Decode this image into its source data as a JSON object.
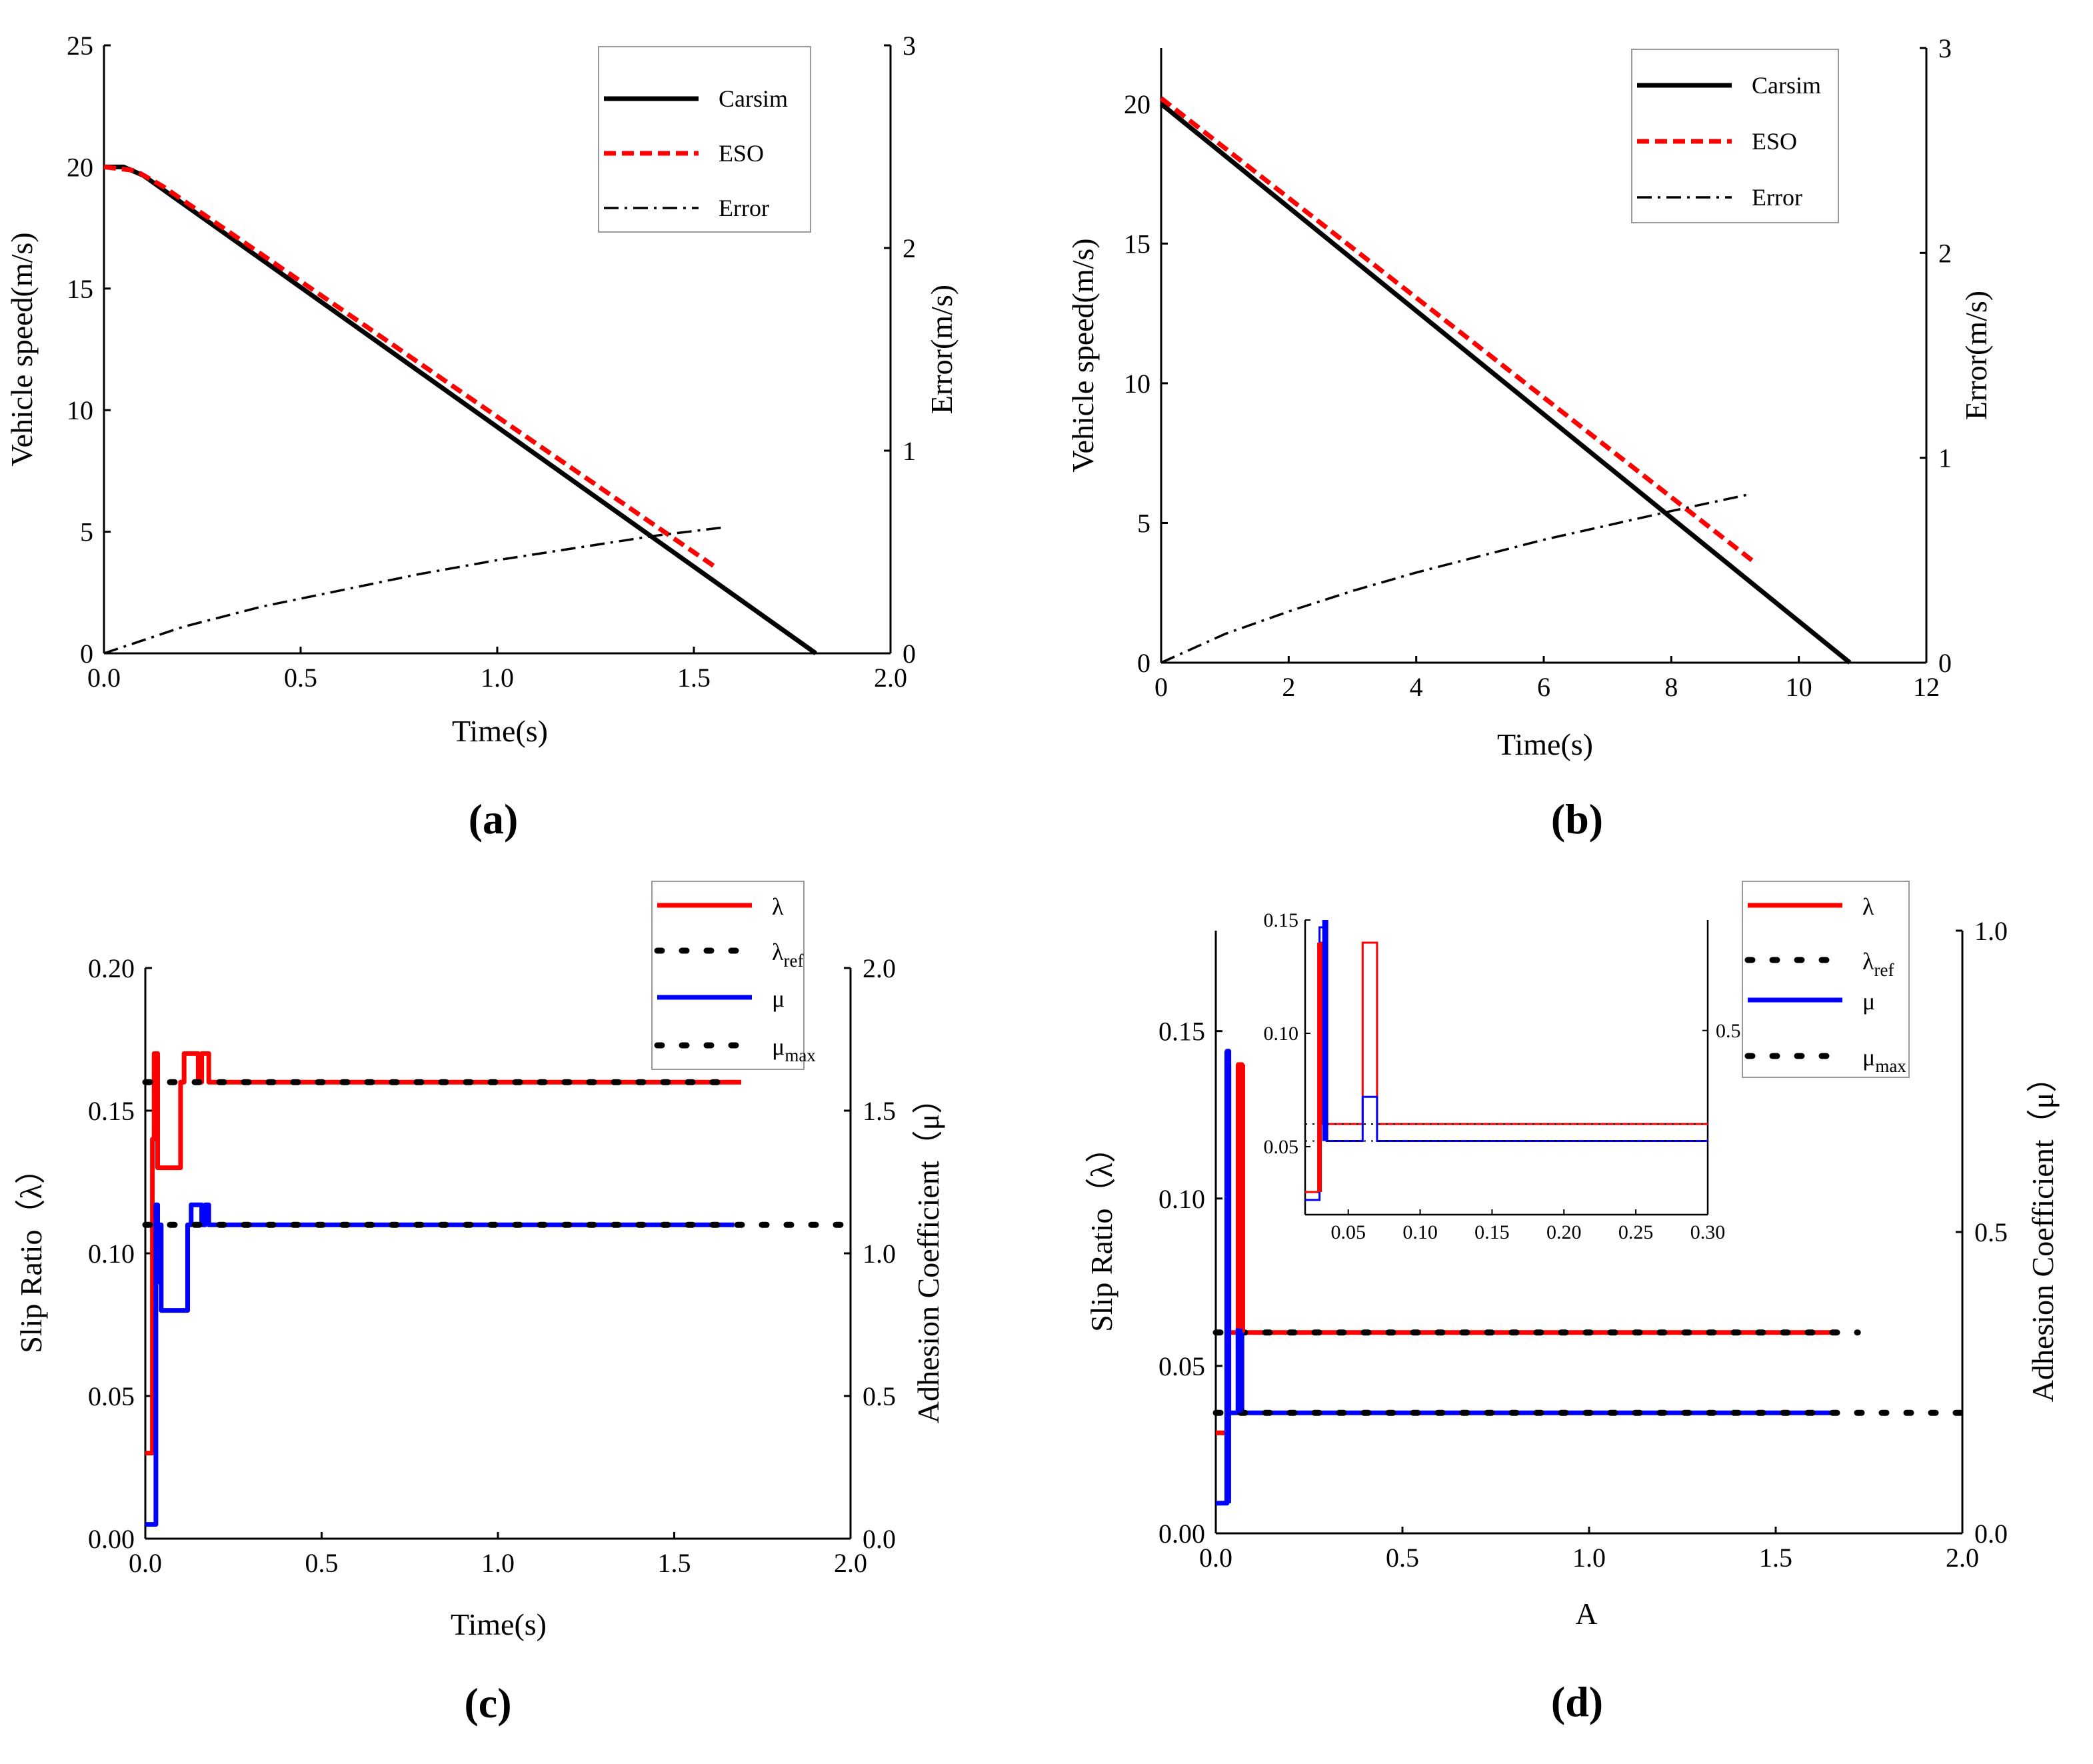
{
  "chart_data": [
    {
      "panel": "a",
      "type": "line",
      "caption": "(a)",
      "xlabel": "Time(s)",
      "ylabel": "Vehicle speed(m/s)",
      "y2label": "Error(m/s)",
      "xlim": [
        0,
        2.0
      ],
      "ylim": [
        0,
        25
      ],
      "y2lim": [
        0,
        3
      ],
      "xticks": [
        "0.0",
        "0.5",
        "1.0",
        "1.5",
        "2.0"
      ],
      "yticks": [
        "0",
        "5",
        "10",
        "15",
        "20",
        "25"
      ],
      "y2ticks": [
        "0",
        "1",
        "2",
        "3"
      ],
      "legend": {
        "items": [
          "Carsim",
          "ESO",
          "Error"
        ],
        "location": "top-right"
      },
      "series": [
        {
          "name": "Carsim",
          "axis": "left",
          "color": "#000000",
          "style": "solid",
          "points": [
            [
              0,
              20
            ],
            [
              0.05,
              20
            ],
            [
              0.1,
              19.65
            ],
            [
              1.81,
              0
            ]
          ]
        },
        {
          "name": "ESO",
          "axis": "left",
          "color": "#ff0000",
          "style": "dashed",
          "points": [
            [
              0,
              20
            ],
            [
              0.08,
              19.85
            ],
            [
              0.15,
              19.2
            ],
            [
              1.55,
              3.6
            ]
          ]
        },
        {
          "name": "Error",
          "axis": "right",
          "color": "#000000",
          "style": "dashdot",
          "points": [
            [
              0,
              0
            ],
            [
              0.2,
              0.13
            ],
            [
              0.4,
              0.23
            ],
            [
              0.6,
              0.31
            ],
            [
              0.8,
              0.39
            ],
            [
              1.0,
              0.46
            ],
            [
              1.2,
              0.52
            ],
            [
              1.4,
              0.58
            ],
            [
              1.57,
              0.62
            ]
          ]
        }
      ]
    },
    {
      "panel": "b",
      "type": "line",
      "caption": "(b)",
      "xlabel": "Time(s)",
      "ylabel": "Vehicle speed(m/s)",
      "y2label": "Error(m/s)",
      "xlim": [
        0,
        12
      ],
      "ylim": [
        0,
        22
      ],
      "y2lim": [
        0,
        3
      ],
      "xticks": [
        "0",
        "2",
        "4",
        "6",
        "8",
        "10",
        "12"
      ],
      "yticks": [
        "0",
        "5",
        "10",
        "15",
        "20"
      ],
      "y2ticks": [
        "0",
        "1",
        "2",
        "3"
      ],
      "legend": {
        "items": [
          "Carsim",
          "ESO",
          "Error"
        ],
        "location": "top-right"
      },
      "series": [
        {
          "name": "Carsim",
          "axis": "left",
          "color": "#000000",
          "style": "solid",
          "points": [
            [
              0,
              20
            ],
            [
              10.8,
              0
            ]
          ]
        },
        {
          "name": "ESO",
          "axis": "left",
          "color": "#ff0000",
          "style": "dashed",
          "points": [
            [
              0,
              20.2
            ],
            [
              9.3,
              3.6
            ]
          ]
        },
        {
          "name": "Error",
          "axis": "right",
          "color": "#000000",
          "style": "dashdot",
          "points": [
            [
              0,
              0
            ],
            [
              1,
              0.14
            ],
            [
              2,
              0.25
            ],
            [
              3,
              0.35
            ],
            [
              4,
              0.44
            ],
            [
              5,
              0.52
            ],
            [
              6,
              0.6
            ],
            [
              7,
              0.67
            ],
            [
              8,
              0.74
            ],
            [
              9.2,
              0.82
            ]
          ]
        }
      ]
    },
    {
      "panel": "c",
      "type": "line",
      "caption": "(c)",
      "xlabel": "Time(s)",
      "ylabel": "Slip Ratio（λ）",
      "y2label": "Adhesion Coefficient（μ）",
      "xlim": [
        0,
        2.0
      ],
      "ylim": [
        0,
        0.2
      ],
      "y2lim": [
        0,
        2.0
      ],
      "xticks": [
        "0.0",
        "0.5",
        "1.0",
        "1.5",
        "2.0"
      ],
      "yticks": [
        "0.00",
        "0.05",
        "0.10",
        "0.15",
        "0.20"
      ],
      "y2ticks": [
        "0.0",
        "0.5",
        "1.0",
        "1.5",
        "2.0"
      ],
      "legend": {
        "items": [
          {
            "base": "λ",
            "sub": ""
          },
          {
            "base": "λ",
            "sub": "ref"
          },
          {
            "base": "μ",
            "sub": ""
          },
          {
            "base": "μ",
            "sub": "max"
          }
        ],
        "location": "top-right"
      },
      "series": [
        {
          "name": "λ",
          "axis": "left",
          "color": "#ff0000",
          "style": "solid",
          "points": [
            [
              0,
              0.03
            ],
            [
              0.02,
              0.03
            ],
            [
              0.02,
              0.14
            ],
            [
              0.025,
              0.14
            ],
            [
              0.025,
              0.17
            ],
            [
              0.035,
              0.17
            ],
            [
              0.035,
              0.13
            ],
            [
              0.1,
              0.13
            ],
            [
              0.1,
              0.16
            ],
            [
              0.11,
              0.16
            ],
            [
              0.11,
              0.17
            ],
            [
              0.15,
              0.17
            ],
            [
              0.15,
              0.16
            ],
            [
              0.16,
              0.16
            ],
            [
              0.16,
              0.17
            ],
            [
              0.18,
              0.17
            ],
            [
              0.18,
              0.16
            ],
            [
              1.69,
              0.16
            ]
          ]
        },
        {
          "name": "λref",
          "axis": "left",
          "color": "#000000",
          "style": "dotted",
          "points": [
            [
              0,
              0.16
            ],
            [
              1.67,
              0.16
            ]
          ]
        },
        {
          "name": "μ",
          "axis": "right",
          "color": "#0000ff",
          "style": "solid",
          "points": [
            [
              0,
              0.05
            ],
            [
              0.03,
              0.05
            ],
            [
              0.03,
              1.17
            ],
            [
              0.035,
              1.17
            ],
            [
              0.035,
              0.9
            ],
            [
              0.04,
              0.9
            ],
            [
              0.04,
              1.1
            ],
            [
              0.045,
              1.1
            ],
            [
              0.045,
              0.8
            ],
            [
              0.12,
              0.8
            ],
            [
              0.12,
              1.1
            ],
            [
              0.13,
              1.1
            ],
            [
              0.13,
              1.17
            ],
            [
              0.16,
              1.17
            ],
            [
              0.16,
              1.1
            ],
            [
              0.17,
              1.1
            ],
            [
              0.17,
              1.17
            ],
            [
              0.18,
              1.17
            ],
            [
              0.18,
              1.1
            ],
            [
              1.67,
              1.1
            ]
          ]
        },
        {
          "name": "μmax",
          "axis": "right",
          "color": "#000000",
          "style": "dotted",
          "points": [
            [
              0,
              1.1
            ],
            [
              2.0,
              1.1
            ]
          ]
        }
      ]
    },
    {
      "panel": "d",
      "type": "line",
      "caption": "(d)",
      "xlabel": "A",
      "ylabel": "Slip Ratio（λ）",
      "y2label": "Adhesion Coefficient（μ）",
      "xlim": [
        0,
        2.0
      ],
      "ylim": [
        0,
        0.18
      ],
      "y2lim": [
        0,
        1.0
      ],
      "xticks": [
        "0.0",
        "0.5",
        "1.0",
        "1.5",
        "2.0"
      ],
      "yticks": [
        "0.00",
        "0.05",
        "0.10",
        "0.15"
      ],
      "y2ticks": [
        "0.0",
        "0.5",
        "1.0"
      ],
      "legend": {
        "items": [
          {
            "base": "λ",
            "sub": ""
          },
          {
            "base": "λ",
            "sub": "ref"
          },
          {
            "base": "μ",
            "sub": ""
          },
          {
            "base": "μ",
            "sub": "max"
          }
        ],
        "location": "top-right"
      },
      "series": [
        {
          "name": "λ",
          "axis": "left",
          "color": "#ff0000",
          "style": "solid",
          "points": [
            [
              0,
              0.03
            ],
            [
              0.03,
              0.03
            ],
            [
              0.03,
              0.14
            ],
            [
              0.035,
              0.14
            ],
            [
              0.035,
              0.06
            ],
            [
              0.06,
              0.06
            ],
            [
              0.06,
              0.14
            ],
            [
              0.07,
              0.14
            ],
            [
              0.07,
              0.06
            ],
            [
              1.66,
              0.06
            ]
          ]
        },
        {
          "name": "λref",
          "axis": "left",
          "color": "#000000",
          "style": "dotted",
          "points": [
            [
              0,
              0.06
            ],
            [
              1.72,
              0.06
            ]
          ]
        },
        {
          "name": "μ",
          "axis": "right",
          "color": "#0000ff",
          "style": "solid",
          "points": [
            [
              0,
              0.05
            ],
            [
              0.03,
              0.05
            ],
            [
              0.03,
              0.8
            ],
            [
              0.035,
              0.8
            ],
            [
              0.035,
              0.2
            ],
            [
              0.06,
              0.2
            ],
            [
              0.06,
              0.34
            ],
            [
              0.07,
              0.34
            ],
            [
              0.07,
              0.2
            ],
            [
              1.66,
              0.2
            ]
          ]
        },
        {
          "name": "μmax",
          "axis": "right",
          "color": "#000000",
          "style": "dotted",
          "points": [
            [
              0,
              0.2
            ],
            [
              2.0,
              0.2
            ]
          ]
        }
      ],
      "inset": {
        "xlim": [
          0.02,
          0.3
        ],
        "ylim": [
          0.02,
          0.15
        ],
        "y2lim": [
          0,
          0.8
        ],
        "xticks": [
          "0.05",
          "0.10",
          "0.15",
          "0.20",
          "0.25",
          "0.30"
        ],
        "yticks": [
          "0.05",
          "0.10",
          "0.15"
        ],
        "y2ticks": [
          "0.5"
        ],
        "series": [
          {
            "name": "λ",
            "axis": "left",
            "color": "#ff0000",
            "points": [
              [
                0.02,
                0.03
              ],
              [
                0.03,
                0.03
              ],
              [
                0.03,
                0.14
              ],
              [
                0.032,
                0.14
              ],
              [
                0.032,
                0.06
              ],
              [
                0.06,
                0.06
              ],
              [
                0.06,
                0.14
              ],
              [
                0.07,
                0.14
              ],
              [
                0.07,
                0.06
              ],
              [
                0.3,
                0.06
              ]
            ]
          },
          {
            "name": "λref",
            "axis": "left",
            "color": "#000000",
            "points": [
              [
                0.02,
                0.06
              ],
              [
                0.3,
                0.06
              ]
            ]
          },
          {
            "name": "μ",
            "axis": "right",
            "color": "#0000ff",
            "points": [
              [
                0.02,
                0.04
              ],
              [
                0.03,
                0.04
              ],
              [
                0.03,
                0.78
              ],
              [
                0.035,
                0.78
              ],
              [
                0.035,
                0.2
              ],
              [
                0.06,
                0.2
              ],
              [
                0.06,
                0.32
              ],
              [
                0.07,
                0.32
              ],
              [
                0.07,
                0.2
              ],
              [
                0.3,
                0.2
              ]
            ]
          },
          {
            "name": "μmax",
            "axis": "right",
            "color": "#000000",
            "points": [
              [
                0.02,
                0.2
              ],
              [
                0.3,
                0.2
              ]
            ]
          }
        ]
      }
    }
  ]
}
